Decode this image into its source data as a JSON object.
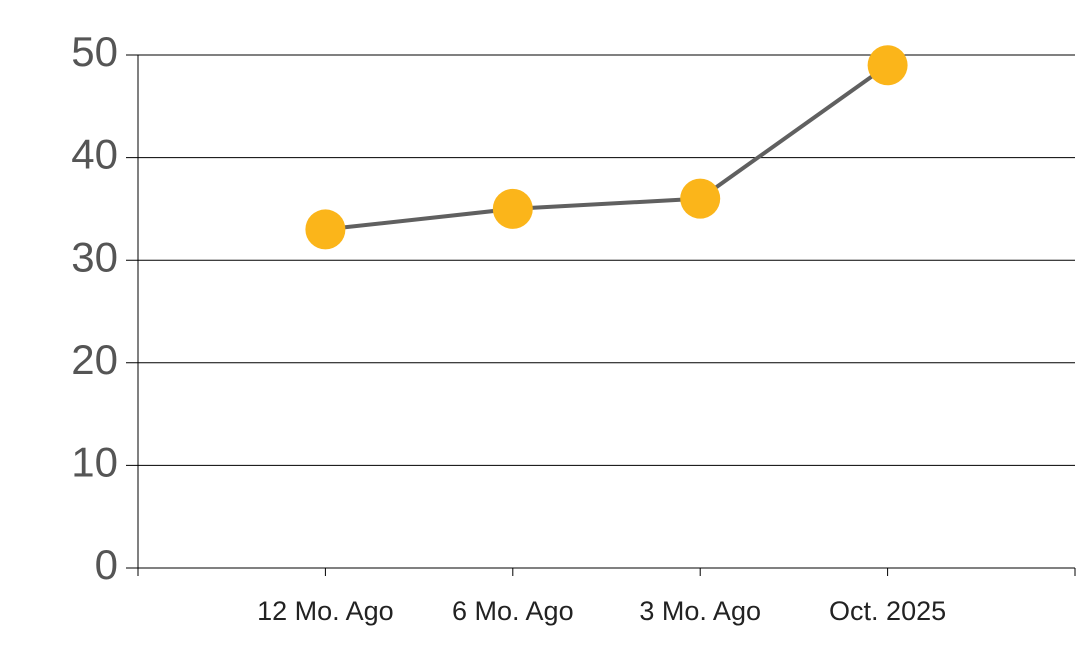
{
  "chart_data": {
    "type": "line",
    "categories": [
      "12 Mo. Ago",
      "6 Mo. Ago",
      "3 Mo. Ago",
      "Oct. 2025"
    ],
    "values": [
      33,
      35,
      36,
      49
    ],
    "line_color": "#606060",
    "marker_color": "#fbb51a",
    "ylim": [
      0,
      50
    ],
    "yticks": [
      0,
      10,
      20,
      30,
      40,
      50
    ],
    "grid": true
  }
}
